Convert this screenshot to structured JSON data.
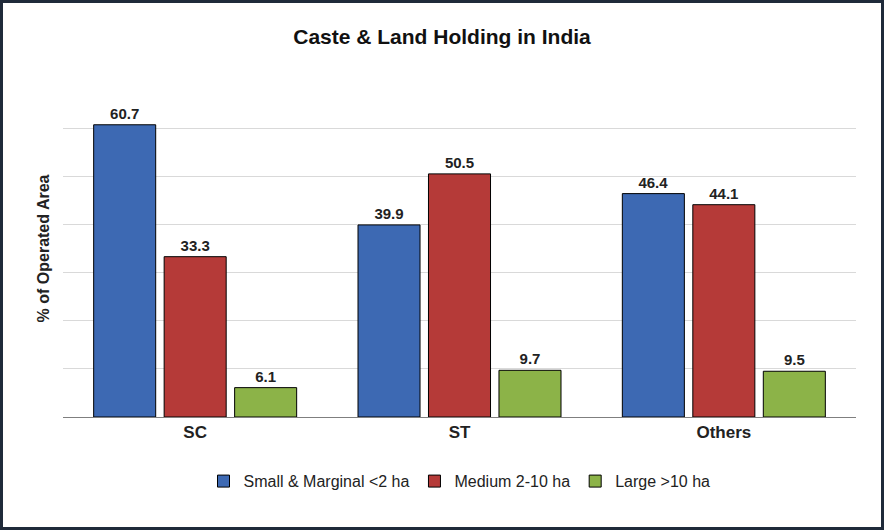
{
  "chart_data": {
    "type": "bar",
    "title": "Caste & Land Holding in India",
    "y_label": "% of Operated Area",
    "categories": [
      "SC",
      "ST",
      "Others"
    ],
    "series": [
      {
        "name": "Small & Marginal <2 ha",
        "color": "#3d69b3",
        "values": [
          60.7,
          39.9,
          46.4
        ]
      },
      {
        "name": "Medium 2-10 ha",
        "color": "#b53a38",
        "values": [
          33.3,
          50.5,
          44.1
        ]
      },
      {
        "name": "Large >10 ha",
        "color": "#8cb348",
        "values": [
          6.1,
          9.7,
          9.5
        ]
      }
    ],
    "ylim": [
      0,
      70
    ],
    "yticks": [
      0,
      10,
      20,
      30,
      40,
      50,
      60,
      70
    ],
    "grid": true,
    "legend": "bottom",
    "data_labels": true,
    "tick_labels": "x"
  }
}
